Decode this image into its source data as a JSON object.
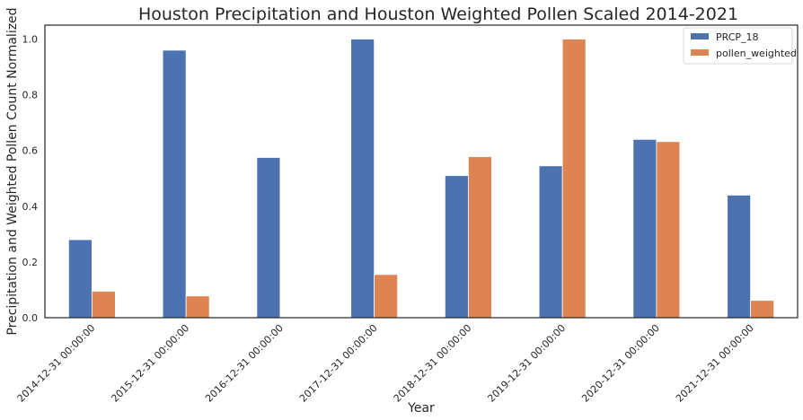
{
  "chart_data": {
    "type": "bar",
    "title": "Houston Precipitation and Houston Weighted Pollen Scaled 2014-2021",
    "xlabel": "Year",
    "ylabel": "Precipitation and Weighted Pollen Count Normalized",
    "categories": [
      "2014-12-31 00:00:00",
      "2015-12-31 00:00:00",
      "2016-12-31 00:00:00",
      "2017-12-31 00:00:00",
      "2018-12-31 00:00:00",
      "2019-12-31 00:00:00",
      "2020-12-31 00:00:00",
      "2021-12-31 00:00:00"
    ],
    "series": [
      {
        "name": "PRCP_18",
        "color": "#4c72b0",
        "values": [
          0.28,
          0.96,
          0.575,
          1.0,
          0.51,
          0.545,
          0.64,
          0.44
        ]
      },
      {
        "name": "pollen_weighted",
        "color": "#dd8452",
        "values": [
          0.095,
          0.078,
          0.0,
          0.155,
          0.578,
          1.0,
          0.632,
          0.062
        ]
      }
    ],
    "ylim": [
      0,
      1.05
    ],
    "yticks": [
      "0.0",
      "0.2",
      "0.4",
      "0.6",
      "0.8",
      "1.0"
    ],
    "grid": false,
    "legend_position": "top-right"
  }
}
